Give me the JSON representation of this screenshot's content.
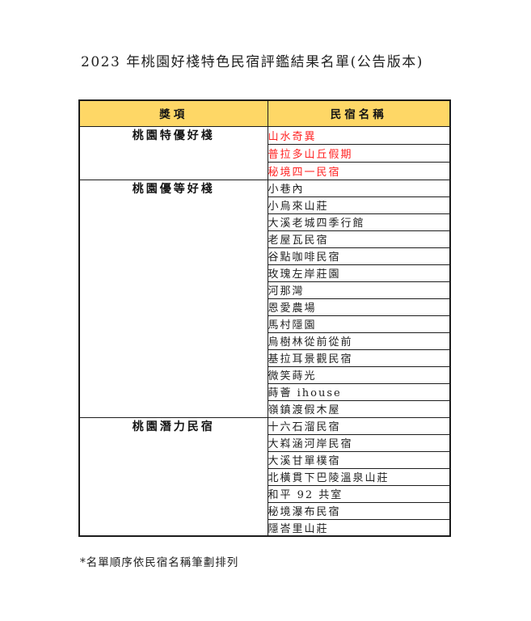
{
  "page": {
    "title": "2023 年桃園好棧特色民宿評鑑結果名單(公告版本)",
    "footnote": "*名單順序依民宿名稱筆劃排列"
  },
  "table": {
    "headers": [
      "獎項",
      "民宿名稱"
    ],
    "header_bg": "#FED766",
    "highlight_color": "#FF2222",
    "sections": [
      {
        "award": "桃園特優好棧",
        "highlight": true,
        "names": [
          "山水奇異",
          "普拉多山丘假期",
          "秘境四一民宿"
        ]
      },
      {
        "award": "桃園優等好棧",
        "highlight": false,
        "names": [
          "小巷內",
          "小烏來山莊",
          "大溪老城四季行館",
          "老屋瓦民宿",
          "谷點咖啡民宿",
          "玫瑰左岸莊園",
          "河那灣",
          "恩愛農場",
          "馬村隱園",
          "烏樹林從前從前",
          "基拉耳景觀民宿",
          "微笑蒔光",
          "蒔薈 ihouse",
          "嶺鎮渡假木屋"
        ]
      },
      {
        "award": "桃園潛力民宿",
        "highlight": false,
        "names": [
          "十六石溜民宿",
          "大嵙涵河岸民宿",
          "大溪甘單樸宿",
          "北橫貫下巴陵溫泉山莊",
          "和平 92 共室",
          "秘境瀑布民宿",
          "隱峇里山莊"
        ]
      }
    ]
  }
}
